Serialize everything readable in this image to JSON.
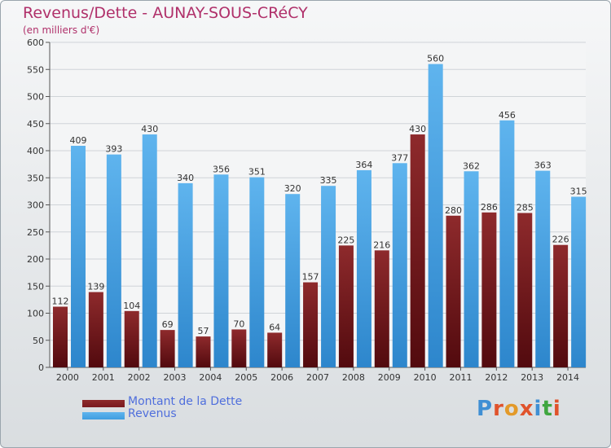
{
  "chart_data": {
    "type": "bar",
    "title": "Revenus/Dette - AUNAY-SOUS-CRéCY",
    "subtitle": "(en milliers d'€)",
    "categories": [
      "2000",
      "2001",
      "2002",
      "2003",
      "2004",
      "2005",
      "2006",
      "2007",
      "2008",
      "2009",
      "2010",
      "2011",
      "2012",
      "2013",
      "2014"
    ],
    "series": [
      {
        "name": "Montant de la Dette",
        "color": "#7a1a1f",
        "values": [
          112,
          139,
          104,
          69,
          57,
          70,
          64,
          157,
          225,
          216,
          430,
          280,
          286,
          285,
          226
        ]
      },
      {
        "name": "Revenus",
        "color": "#3f9de0",
        "values": [
          409,
          393,
          430,
          340,
          356,
          351,
          320,
          335,
          364,
          377,
          560,
          362,
          456,
          363,
          315
        ]
      }
    ],
    "ylim": [
      0,
      600
    ],
    "yticks": [
      0,
      50,
      100,
      150,
      200,
      250,
      300,
      350,
      400,
      450,
      500,
      550,
      600
    ],
    "grid": true,
    "legend_position": "bottom-left"
  },
  "logo": {
    "text": "Proxiti",
    "colors": [
      "#3f8fd4",
      "#e0532c",
      "#e39a2a",
      "#e0532c",
      "#3f8fd4",
      "#3fa63f",
      "#e0532c"
    ]
  }
}
